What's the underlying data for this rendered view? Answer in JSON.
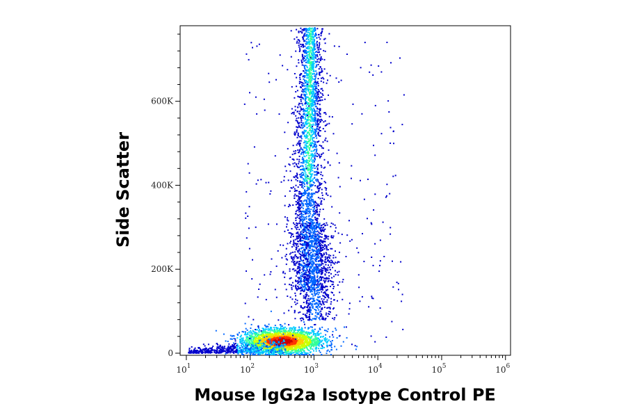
{
  "chart_data": {
    "type": "scatter",
    "title": "",
    "xlabel": "Mouse IgG2a Isotype Control PE",
    "ylabel": "Side Scatter",
    "x_scale": "log",
    "xlim": [
      8,
      1200000
    ],
    "ylim": [
      -5000,
      780000
    ],
    "x_ticks": [
      {
        "base": "10",
        "exp": "1",
        "value": 10
      },
      {
        "base": "10",
        "exp": "2",
        "value": 100
      },
      {
        "base": "10",
        "exp": "3",
        "value": 1000
      },
      {
        "base": "10",
        "exp": "4",
        "value": 10000
      },
      {
        "base": "10",
        "exp": "5",
        "value": 100000
      },
      {
        "base": "10",
        "exp": "6",
        "value": 1000000
      }
    ],
    "y_ticks": [
      {
        "label": "0",
        "value": 0
      },
      {
        "label": "200K",
        "value": 200000
      },
      {
        "label": "400K",
        "value": 400000
      },
      {
        "label": "600K",
        "value": 600000
      }
    ],
    "grid": false,
    "legend": "none",
    "density_colormap": [
      "#0000cc",
      "#0066ff",
      "#00ccff",
      "#33ff99",
      "#ccff00",
      "#ffcc00",
      "#ff3300",
      "#cc0000"
    ],
    "populations": [
      {
        "description": "dense low-SSC cluster",
        "x_center": 350,
        "y_center": 25000,
        "density": "highest"
      },
      {
        "description": "vertical high-SSC band",
        "x_center": 800,
        "y_range": [
          60000,
          780000
        ],
        "density": "high"
      }
    ]
  }
}
